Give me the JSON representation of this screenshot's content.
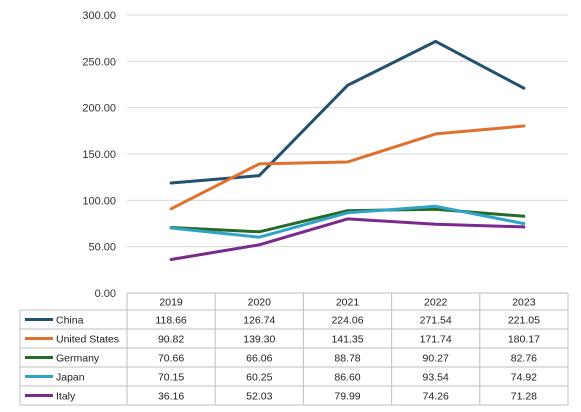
{
  "chart_data": {
    "type": "line",
    "title": "",
    "xlabel": "",
    "ylabel": "",
    "ylim": [
      0,
      300
    ],
    "yticks": [
      "0.00",
      "50.00",
      "100.00",
      "150.00",
      "200.00",
      "250.00",
      "300.00"
    ],
    "grid": true,
    "legend": "data table below chart",
    "categories": [
      "2019",
      "2020",
      "2021",
      "2022",
      "2023"
    ],
    "series": [
      {
        "name": "China",
        "color": "#23506e",
        "values": [
          118.66,
          126.74,
          224.06,
          271.54,
          221.05
        ],
        "labels": [
          "118.66",
          "126.74",
          "224.06",
          "271.54",
          "221.05"
        ]
      },
      {
        "name": "United States",
        "color": "#e07030",
        "values": [
          90.82,
          139.3,
          141.35,
          171.74,
          180.17
        ],
        "labels": [
          "90.82",
          "139.30",
          "141.35",
          "171.74",
          "180.17"
        ]
      },
      {
        "name": "Germany",
        "color": "#256b27",
        "values": [
          70.66,
          66.06,
          88.78,
          90.27,
          82.76
        ],
        "labels": [
          "70.66",
          "66.06",
          "88.78",
          "90.27",
          "82.76"
        ]
      },
      {
        "name": "Japan",
        "color": "#2fa3c8",
        "values": [
          70.15,
          60.25,
          86.6,
          93.54,
          74.92
        ],
        "labels": [
          "70.15",
          "60.25",
          "86.60",
          "93.54",
          "74.92"
        ]
      },
      {
        "name": "Italy",
        "color": "#7a2a8c",
        "values": [
          36.16,
          52.03,
          79.99,
          74.26,
          71.28
        ],
        "labels": [
          "36.16",
          "52.03",
          "79.99",
          "74.26",
          "71.28"
        ]
      }
    ]
  }
}
